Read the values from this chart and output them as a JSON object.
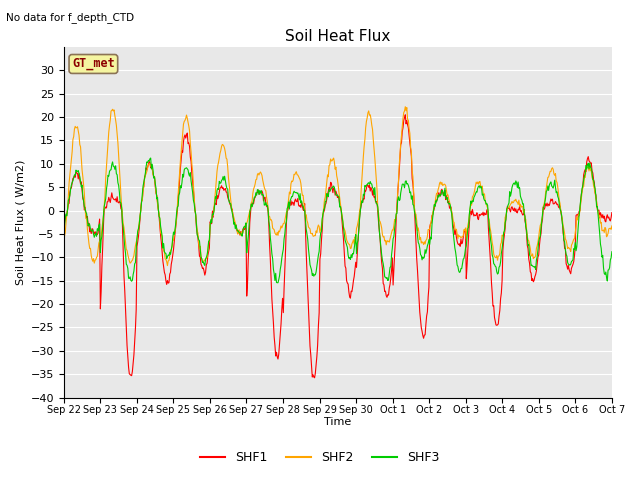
{
  "title": "Soil Heat Flux",
  "topleft_text": "No data for f_depth_CTD",
  "ylabel": "Soil Heat Flux ( W/m2)",
  "xlabel": "Time",
  "ylim": [
    -40,
    35
  ],
  "yticks": [
    -40,
    -35,
    -30,
    -25,
    -20,
    -15,
    -10,
    -5,
    0,
    5,
    10,
    15,
    20,
    25,
    30
  ],
  "bg_color": "#e8e8e8",
  "fig_bg_color": "#ffffff",
  "box_label": "GT_met",
  "legend_labels": [
    "SHF1",
    "SHF2",
    "SHF3"
  ],
  "legend_colors": [
    "#ff0000",
    "#ffa500",
    "#00cc00"
  ],
  "line_colors": [
    "#ff0000",
    "#ffa500",
    "#00cc00"
  ],
  "title_fontsize": 11,
  "label_fontsize": 8,
  "tick_fontsize": 8,
  "xtick_labels": [
    "Sep 22",
    "Sep 23",
    "Sep 24",
    "Sep 25",
    "Sep 26",
    "Sep 27",
    "Sep 28",
    "Sep 29",
    "Sep 30",
    "Oct 1",
    "Oct 2",
    "Oct 3",
    "Oct 4",
    "Oct 5",
    "Oct 6",
    "Oct 7"
  ]
}
